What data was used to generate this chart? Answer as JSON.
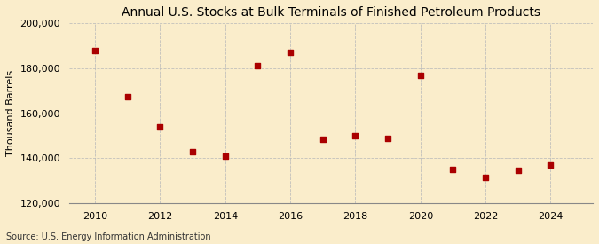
{
  "title": "Annual U.S. Stocks at Bulk Terminals of Finished Petroleum Products",
  "ylabel": "Thousand Barrels",
  "source_text": "Source: U.S. Energy Information Administration",
  "background_color": "#faedcb",
  "marker_color": "#aa0000",
  "years": [
    2010,
    2011,
    2012,
    2013,
    2014,
    2015,
    2016,
    2017,
    2018,
    2019,
    2020,
    2021,
    2022,
    2023,
    2024
  ],
  "values": [
    188000,
    167500,
    154000,
    143000,
    141000,
    181000,
    187000,
    148500,
    150000,
    149000,
    177000,
    135000,
    131500,
    134500,
    137000
  ],
  "ylim": [
    120000,
    200000
  ],
  "yticks": [
    120000,
    140000,
    160000,
    180000,
    200000
  ],
  "xticks": [
    2010,
    2012,
    2014,
    2016,
    2018,
    2020,
    2022,
    2024
  ],
  "xlim": [
    2009.2,
    2025.3
  ],
  "grid_color": "#bbbbbb",
  "title_fontsize": 10,
  "label_fontsize": 8,
  "tick_fontsize": 8,
  "source_fontsize": 7
}
